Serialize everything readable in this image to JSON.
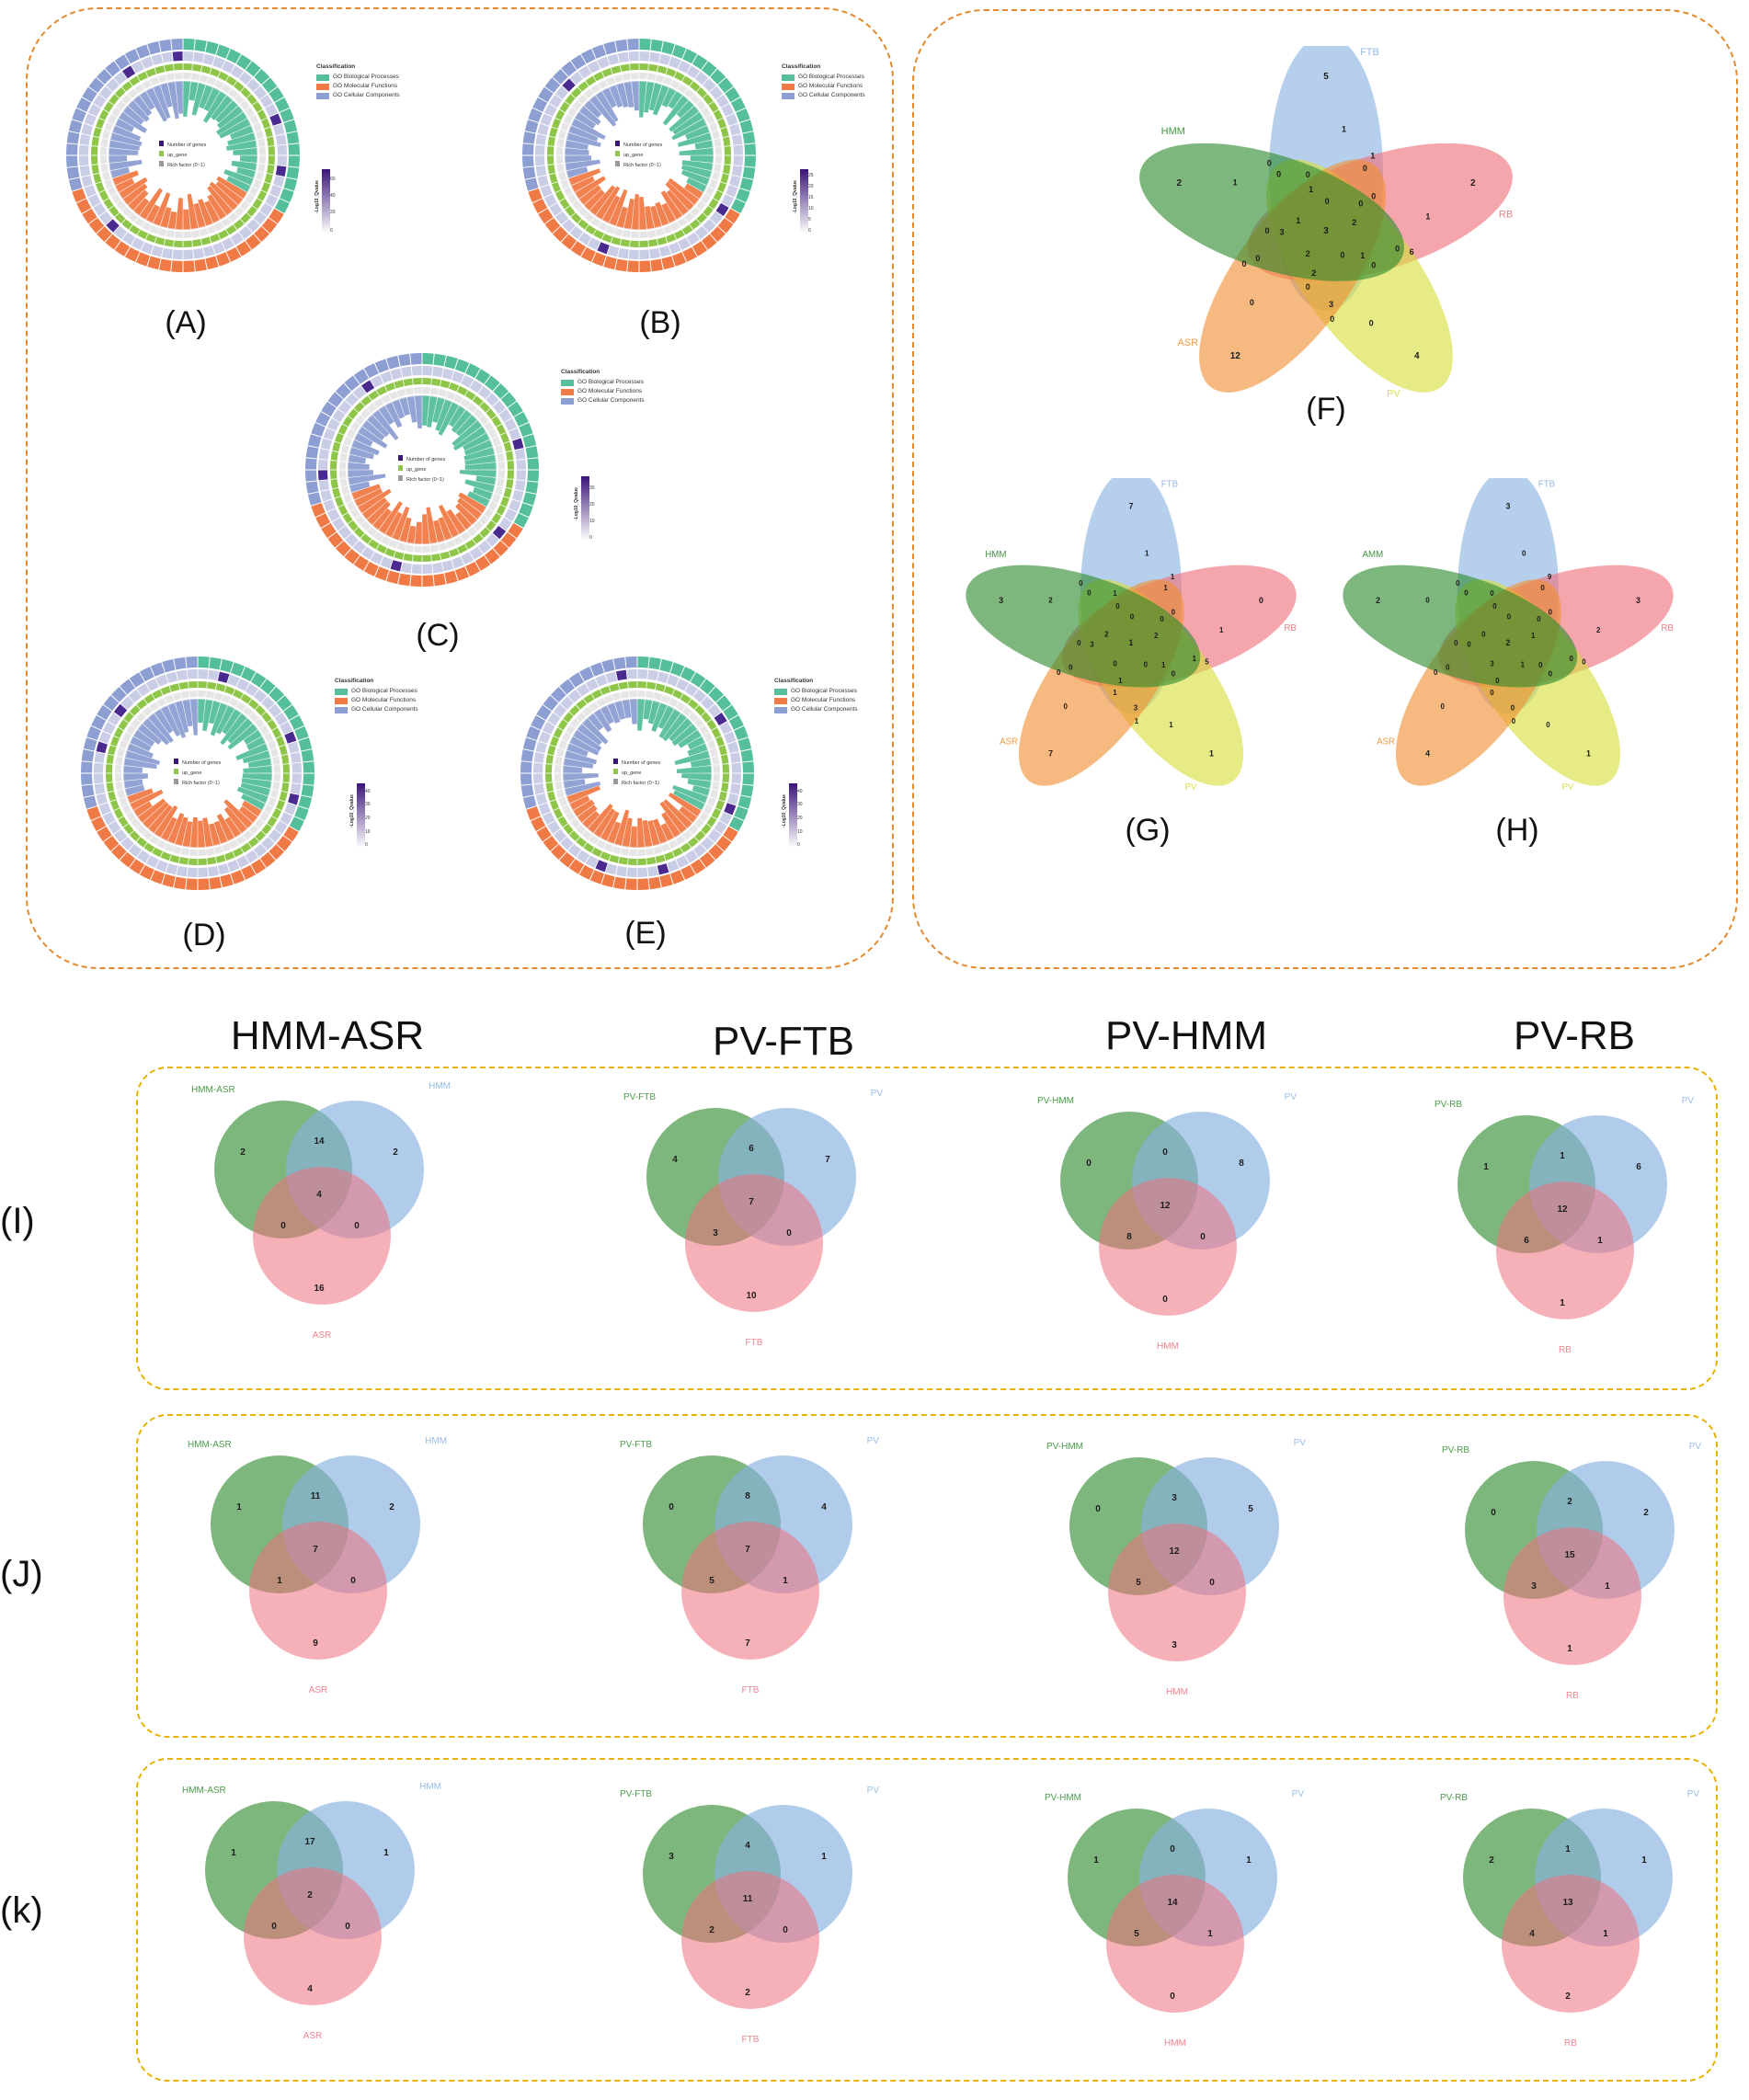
{
  "colors": {
    "bp": "#55bf9b",
    "mf": "#f07a45",
    "cc": "#8c9ed2",
    "green": "#2e8a2e",
    "blue": "#87b1e0",
    "red": "#ef6f7b",
    "yellow": "#d7de3c",
    "orange": "#f08f33"
  },
  "go_legend": {
    "title": "Classification",
    "bp": "GO Biological Processes",
    "mf": "GO Molecular Functions",
    "cc": "GO Cellular Components"
  },
  "inner_legend": {
    "genes": "Number of genes",
    "up": "up_gene",
    "rich": "Rich factor (0~1)"
  },
  "cbar_title": "-Log10_Qvalue",
  "panels": {
    "A": {
      "label": "(A)",
      "ticks": [
        "60",
        "40",
        "20",
        "0"
      ]
    },
    "B": {
      "label": "(B)",
      "ticks": [
        "25",
        "20",
        "15",
        "10",
        "5",
        "0"
      ]
    },
    "C": {
      "label": "(C)",
      "ticks": [
        "30",
        "20",
        "10",
        "0"
      ]
    },
    "D": {
      "label": "(D)",
      "ticks": [
        "40",
        "30",
        "20",
        "10",
        "0"
      ]
    },
    "E": {
      "label": "(E)",
      "ticks": [
        "40",
        "30",
        "20",
        "10",
        "0"
      ]
    },
    "F": {
      "label": "(F)",
      "sets": [
        "FTB",
        "RB",
        "PV",
        "ASR",
        "HMM"
      ],
      "outer": [
        "5",
        "2",
        "4",
        "12",
        "2"
      ],
      "inner": [
        "1",
        "1",
        "0",
        "0",
        "0",
        "2",
        "1",
        "6",
        "0",
        "0",
        "1",
        "0",
        "0",
        "0",
        "3",
        "0",
        "2",
        "2",
        "0",
        "0",
        "0",
        "0",
        "3",
        "1",
        "1",
        "0",
        "0",
        "0",
        "1",
        "0",
        "3"
      ]
    },
    "G": {
      "label": "(G)",
      "sets": [
        "FTB",
        "RB",
        "PV",
        "ASR",
        "HMM"
      ],
      "outer": [
        "7",
        "0",
        "1",
        "7",
        "3"
      ],
      "inner": [
        "1",
        "1",
        "1",
        "0",
        "0",
        "2",
        "1",
        "5",
        "1",
        "0",
        "1",
        "0",
        "1",
        "1",
        "3",
        "1",
        "1",
        "0",
        "0",
        "0",
        "0",
        "0",
        "3",
        "2",
        "2",
        "0",
        "0",
        "1",
        "0",
        "0",
        "1"
      ]
    },
    "H": {
      "label": "(H)",
      "sets": [
        "FTB",
        "RB",
        "PV",
        "ASR",
        "AMM"
      ],
      "outer": [
        "3",
        "3",
        "1",
        "4",
        "2"
      ],
      "inner": [
        "0",
        "9",
        "0",
        "0",
        "0",
        "1",
        "2",
        "0",
        "0",
        "0",
        "0",
        "1",
        "0",
        "0",
        "0",
        "0",
        "0",
        "3",
        "0",
        "0",
        "0",
        "0",
        "0",
        "0",
        "0",
        "0",
        "0",
        "0",
        "0",
        "0",
        "2"
      ]
    }
  },
  "columns": [
    "HMM-ASR",
    "PV-FTB",
    "PV-HMM",
    "PV-RB"
  ],
  "rows": [
    {
      "label": "(I)",
      "venns": [
        {
          "labels": [
            "HMM-ASR",
            "HMM",
            "ASR"
          ],
          "n": [
            "2",
            "14",
            "2",
            "4",
            "0",
            "0",
            "16"
          ]
        },
        {
          "labels": [
            "PV-FTB",
            "PV",
            "FTB"
          ],
          "n": [
            "4",
            "6",
            "7",
            "7",
            "3",
            "0",
            "10"
          ]
        },
        {
          "labels": [
            "PV-HMM",
            "PV",
            "HMM"
          ],
          "n": [
            "0",
            "0",
            "8",
            "12",
            "8",
            "0",
            "0"
          ]
        },
        {
          "labels": [
            "PV-RB",
            "PV",
            "RB"
          ],
          "n": [
            "1",
            "1",
            "6",
            "12",
            "6",
            "1",
            "1"
          ]
        }
      ]
    },
    {
      "label": "(J)",
      "venns": [
        {
          "labels": [
            "HMM-ASR",
            "HMM",
            "ASR"
          ],
          "n": [
            "1",
            "11",
            "2",
            "7",
            "1",
            "0",
            "9"
          ]
        },
        {
          "labels": [
            "PV-FTB",
            "PV",
            "FTB"
          ],
          "n": [
            "0",
            "8",
            "4",
            "7",
            "5",
            "1",
            "7"
          ]
        },
        {
          "labels": [
            "PV-HMM",
            "PV",
            "HMM"
          ],
          "n": [
            "0",
            "3",
            "5",
            "12",
            "5",
            "0",
            "3"
          ]
        },
        {
          "labels": [
            "PV-RB",
            "PV",
            "RB"
          ],
          "n": [
            "0",
            "2",
            "2",
            "15",
            "3",
            "1",
            "1"
          ]
        }
      ]
    },
    {
      "label": "(k)",
      "venns": [
        {
          "labels": [
            "HMM-ASR",
            "HMM",
            "ASR"
          ],
          "n": [
            "1",
            "17",
            "1",
            "2",
            "0",
            "0",
            "4"
          ]
        },
        {
          "labels": [
            "PV-FTB",
            "PV",
            "FTB"
          ],
          "n": [
            "3",
            "4",
            "1",
            "11",
            "2",
            "0",
            "2"
          ]
        },
        {
          "labels": [
            "PV-HMM",
            "PV",
            "HMM"
          ],
          "n": [
            "1",
            "0",
            "1",
            "14",
            "5",
            "1",
            "0"
          ]
        },
        {
          "labels": [
            "PV-RB",
            "PV",
            "RB"
          ],
          "n": [
            "2",
            "1",
            "1",
            "13",
            "4",
            "1",
            "2"
          ]
        }
      ]
    }
  ]
}
